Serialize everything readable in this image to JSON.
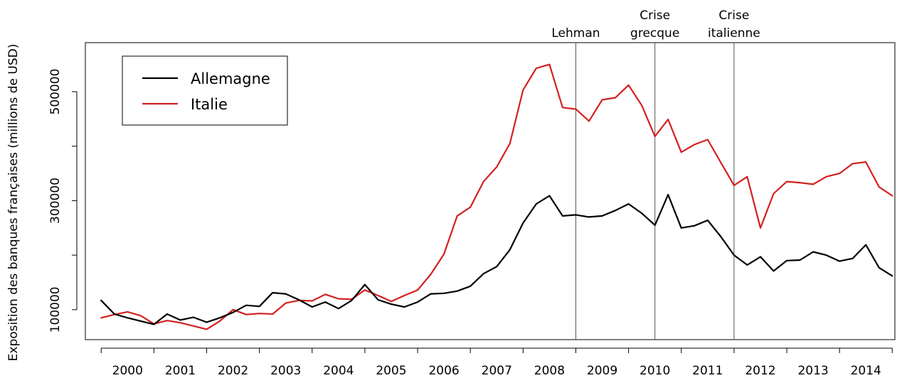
{
  "chart_data": {
    "type": "line",
    "ylabel": "Exposition des banques françaises (millions de USD)",
    "xlabel": "",
    "ylim": [
      45000,
      590000
    ],
    "xlim": [
      1999.7,
      2015.05
    ],
    "x_ticks": [
      "2000",
      "2001",
      "2002",
      "2003",
      "2004",
      "2005",
      "2006",
      "2007",
      "2008",
      "2009",
      "2010",
      "2011",
      "2012",
      "2013",
      "2014"
    ],
    "y_ticks": [
      100000,
      300000,
      500000
    ],
    "y_tick_labels": [
      "100000",
      "300000",
      "500000"
    ],
    "grid": false,
    "legend_position": "top-left",
    "annotations": [
      {
        "x": 2009.0,
        "lines": [
          "Lehman"
        ]
      },
      {
        "x": 2010.5,
        "lines": [
          "Crise",
          "grecque"
        ]
      },
      {
        "x": 2012.0,
        "lines": [
          "Crise",
          "italienne"
        ]
      }
    ],
    "x": [
      2000.0,
      2000.25,
      2000.5,
      2000.75,
      2001.0,
      2001.25,
      2001.5,
      2001.75,
      2002.0,
      2002.25,
      2002.5,
      2002.75,
      2003.0,
      2003.25,
      2003.5,
      2003.75,
      2004.0,
      2004.25,
      2004.5,
      2004.75,
      2005.0,
      2005.25,
      2005.5,
      2005.75,
      2006.0,
      2006.25,
      2006.5,
      2006.75,
      2007.0,
      2007.25,
      2007.5,
      2007.75,
      2008.0,
      2008.25,
      2008.5,
      2008.75,
      2009.0,
      2009.25,
      2009.5,
      2009.75,
      2010.0,
      2010.25,
      2010.5,
      2010.75,
      2011.0,
      2011.25,
      2011.5,
      2011.75,
      2012.0,
      2012.25,
      2012.5,
      2012.75,
      2013.0,
      2013.25,
      2013.5,
      2013.75,
      2014.0,
      2014.25,
      2014.5,
      2014.75,
      2015.0
    ],
    "series": [
      {
        "name": "Allemagne",
        "color": "#000000",
        "values": [
          117000,
          92000,
          85000,
          79000,
          73000,
          92000,
          81000,
          86000,
          77000,
          85000,
          95000,
          108000,
          106000,
          131000,
          129000,
          118000,
          105000,
          114000,
          102000,
          117000,
          146000,
          118000,
          110000,
          105000,
          114000,
          129000,
          130000,
          134000,
          143000,
          166000,
          179000,
          210000,
          259000,
          294000,
          309000,
          272000,
          274000,
          270000,
          272000,
          282000,
          294000,
          277000,
          255000,
          311000,
          250000,
          254000,
          264000,
          234000,
          200000,
          182000,
          197000,
          171000,
          190000,
          191000,
          206000,
          200000,
          189000,
          194000,
          219000,
          177000,
          162000
        ]
      },
      {
        "name": "Italie",
        "color": "#d42020",
        "values": [
          85000,
          91000,
          96000,
          89000,
          74000,
          80000,
          76000,
          70000,
          64000,
          79000,
          100000,
          91000,
          93000,
          92000,
          112000,
          117000,
          116000,
          128000,
          120000,
          119000,
          136000,
          126000,
          115000,
          126000,
          136000,
          165000,
          202000,
          272000,
          288000,
          335000,
          362000,
          405000,
          503000,
          543000,
          550000,
          471000,
          468000,
          446000,
          485000,
          489000,
          512000,
          475000,
          418000,
          449000,
          389000,
          403000,
          412000,
          370000,
          328000,
          344000,
          250000,
          313000,
          335000,
          333000,
          330000,
          344000,
          350000,
          368000,
          371000,
          325000,
          309000
        ]
      }
    ]
  }
}
